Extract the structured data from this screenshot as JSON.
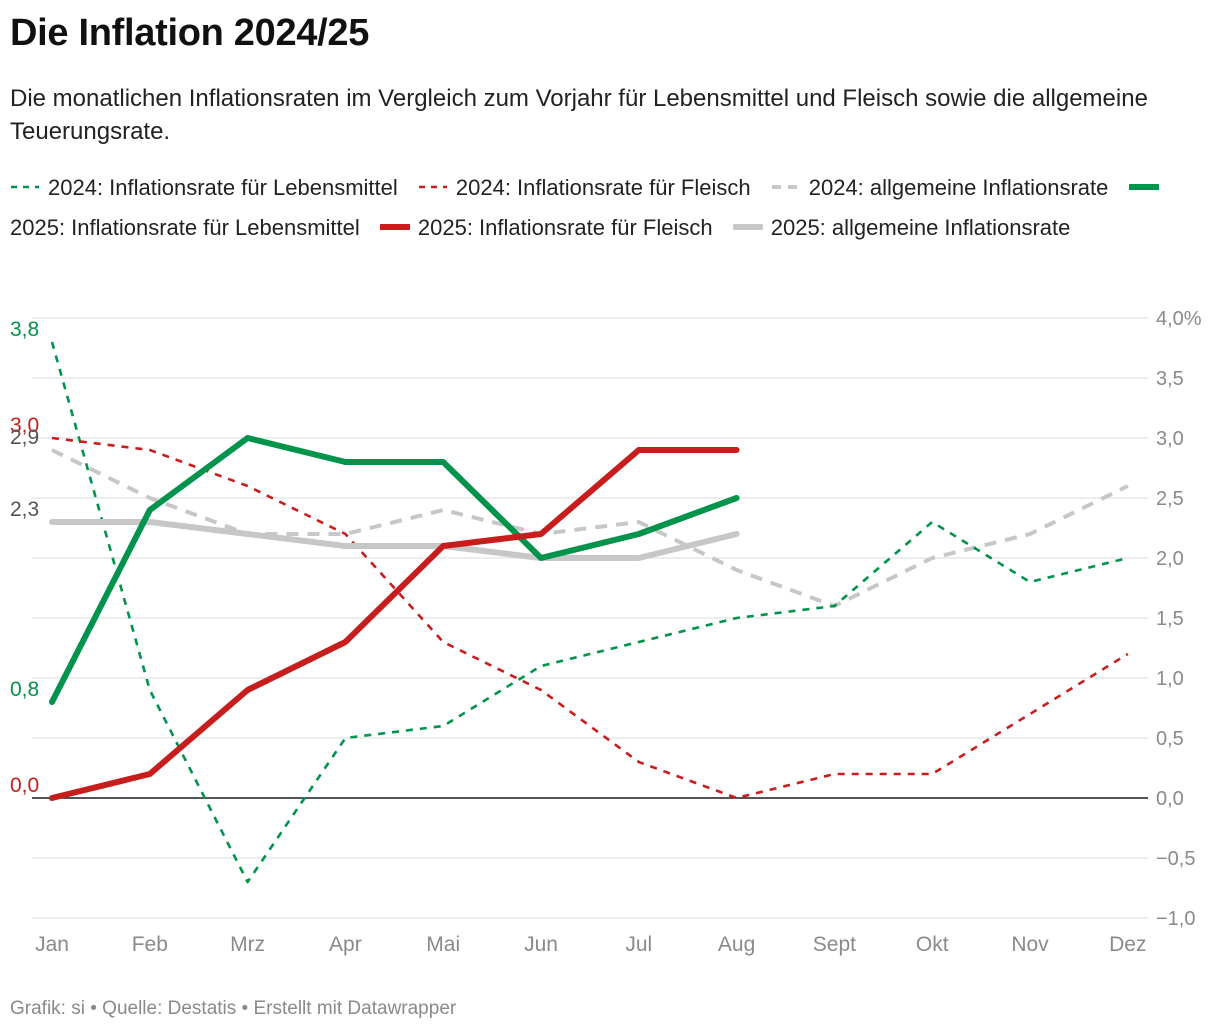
{
  "header": {
    "title": "Die Inflation 2024/25",
    "subtitle": "Die monatlichen Inflationsraten im Vergleich zum Vorjahr für Lebensmittel und Fleisch sowie die allgemeine Teuerungsrate."
  },
  "footer": {
    "credit": "Grafik: si • Quelle: Destatis • Erstellt mit Datawrapper"
  },
  "colors": {
    "green": "#00934b",
    "red": "#c71e1d",
    "gray": "#c7c7c7",
    "grid": "#e2e2e2",
    "axis_text": "#8a8a8a"
  },
  "chart_data": {
    "type": "line",
    "categories": [
      "Jan",
      "Feb",
      "Mrz",
      "Apr",
      "Mai",
      "Jun",
      "Jul",
      "Aug",
      "Sept",
      "Okt",
      "Nov",
      "Dez"
    ],
    "ylim": [
      -1.0,
      4.0
    ],
    "yticks": [
      -1.0,
      -0.5,
      0.0,
      0.5,
      1.0,
      1.5,
      2.0,
      2.5,
      3.0,
      3.5,
      4.0
    ],
    "ytick_labels": [
      "−1,0",
      "−0,5",
      "0,0",
      "0,5",
      "1,0",
      "1,5",
      "2,0",
      "2,5",
      "3,0",
      "3,5",
      "4,0%"
    ],
    "yaxis_position": "right",
    "grid": true,
    "legend_position": "top",
    "series": [
      {
        "name": "2024: Inflationsrate für Lebensmittel",
        "color": "#00934b",
        "style": "dashed",
        "values": [
          3.8,
          0.9,
          -0.7,
          0.5,
          0.6,
          1.1,
          1.3,
          1.5,
          1.6,
          2.3,
          1.8,
          2.0
        ]
      },
      {
        "name": "2024: Inflationsrate für Fleisch",
        "color": "#c71e1d",
        "style": "dashed",
        "values": [
          3.0,
          2.9,
          2.6,
          2.2,
          1.3,
          0.9,
          0.3,
          0.0,
          0.2,
          0.2,
          0.7,
          1.2
        ]
      },
      {
        "name": "2024: allgemeine Inflationsrate",
        "color": "#c7c7c7",
        "style": "dashed-thick",
        "values": [
          2.9,
          2.5,
          2.2,
          2.2,
          2.4,
          2.2,
          2.3,
          1.9,
          1.6,
          2.0,
          2.2,
          2.6
        ]
      },
      {
        "name": "2025: Inflationsrate für Lebensmittel",
        "color": "#00934b",
        "style": "solid",
        "values": [
          0.8,
          2.4,
          3.0,
          2.8,
          2.8,
          2.0,
          2.2,
          2.5,
          null,
          null,
          null,
          null
        ]
      },
      {
        "name": "2025: Inflationsrate für Fleisch",
        "color": "#c71e1d",
        "style": "solid",
        "values": [
          0.0,
          0.2,
          0.9,
          1.3,
          2.1,
          2.2,
          2.9,
          2.9,
          null,
          null,
          null,
          null
        ]
      },
      {
        "name": "2025: allgemeine Inflationsrate",
        "color": "#c7c7c7",
        "style": "solid",
        "values": [
          2.3,
          2.3,
          2.2,
          2.1,
          2.1,
          2.0,
          2.0,
          2.2,
          null,
          null,
          null,
          null
        ]
      }
    ],
    "annotations": [
      {
        "text": "3,8",
        "value": 3.8,
        "color": "#00934b"
      },
      {
        "text": "3,0",
        "value": 3.0,
        "color": "#c71e1d"
      },
      {
        "text": "2,9",
        "value": 2.9,
        "color": "#555555"
      },
      {
        "text": "2,3",
        "value": 2.3,
        "color": "#555555"
      },
      {
        "text": "0,8",
        "value": 0.8,
        "color": "#00934b"
      },
      {
        "text": "0,0",
        "value": 0.0,
        "color": "#c71e1d"
      }
    ]
  }
}
